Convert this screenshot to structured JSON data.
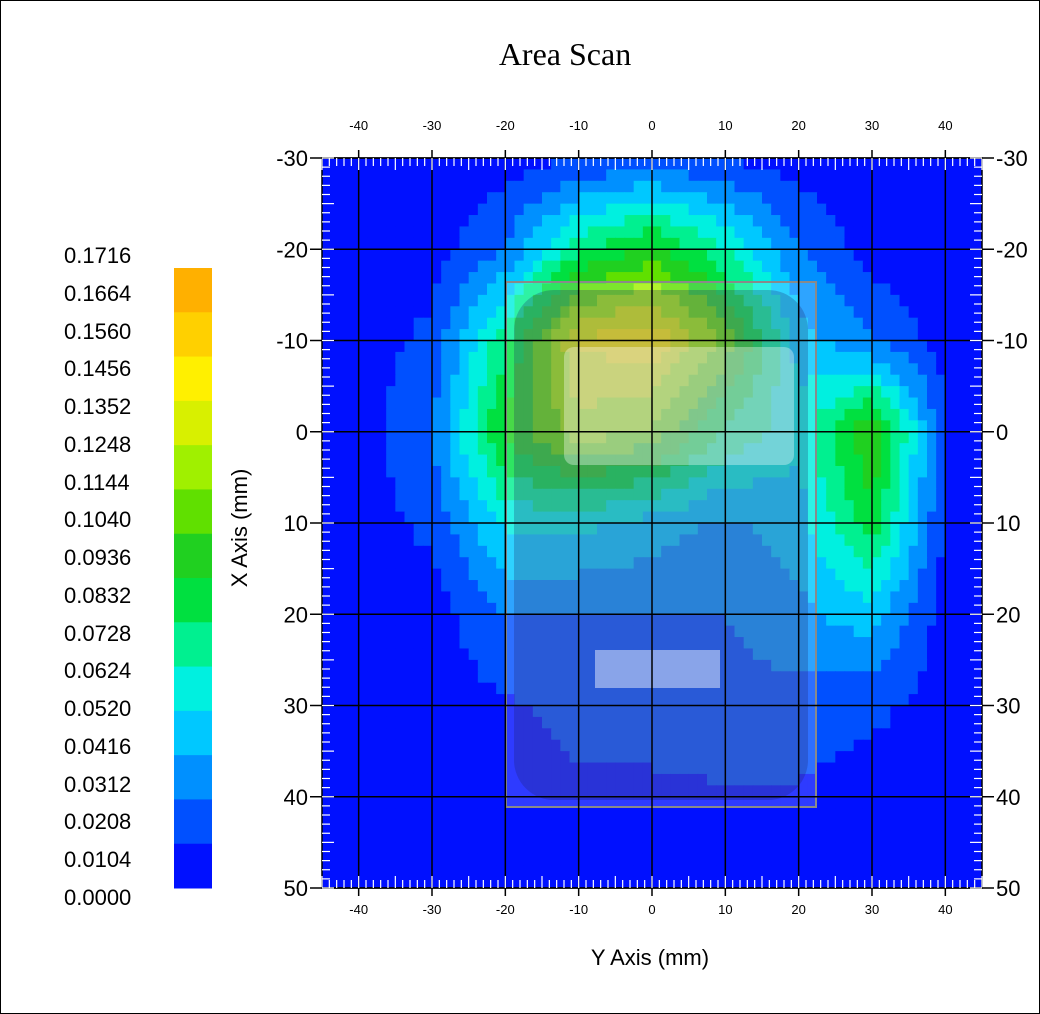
{
  "chart_data": {
    "type": "heatmap",
    "title": "Area Scan",
    "xlabel": "Y Axis (mm)",
    "ylabel": "X Axis (mm)",
    "xlim": [
      -45,
      45
    ],
    "ylim": [
      -30,
      50
    ],
    "x_ticks": [
      -40,
      -30,
      -20,
      -10,
      0,
      10,
      20,
      30,
      40
    ],
    "y_ticks": [
      -30,
      -20,
      -10,
      0,
      10,
      20,
      30,
      40,
      50
    ],
    "y_tick_labels": [
      "-30",
      "-20",
      "-10",
      "0",
      "10",
      "20",
      "30",
      "40",
      "50"
    ],
    "x_tick_labels": [
      "-40",
      "-30",
      "-20",
      "-10",
      "0",
      "10",
      "20",
      "30",
      "40"
    ],
    "grid": true,
    "colorbar": {
      "min": 0.0,
      "max": 0.1716,
      "labels": [
        "0.1716",
        "0.1664",
        "0.1560",
        "0.1456",
        "0.1352",
        "0.1248",
        "0.1144",
        "0.1040",
        "0.0936",
        "0.0832",
        "0.0728",
        "0.0624",
        "0.0520",
        "0.0416",
        "0.0312",
        "0.0208",
        "0.0104",
        "0.0000"
      ],
      "colors": [
        "#ffb000",
        "#ffd000",
        "#fff000",
        "#d8f000",
        "#a0f000",
        "#60e000",
        "#20d020",
        "#00e040",
        "#00f090",
        "#00f0e0",
        "#00c8ff",
        "#0090ff",
        "#0050ff",
        "#0010ff"
      ]
    },
    "grid_y": [
      -30,
      -20,
      -10,
      0,
      10,
      20,
      30,
      40,
      50
    ],
    "grid_x": [
      -40,
      -30,
      -20,
      -10,
      0,
      10,
      20,
      30,
      40
    ],
    "values": [
      [
        0.0,
        0.0,
        0.0,
        0.005,
        0.01,
        0.005,
        0.0,
        0.0,
        0.0
      ],
      [
        0.0,
        0.0,
        0.02,
        0.07,
        0.09,
        0.06,
        0.02,
        0.0,
        0.0
      ],
      [
        0.0,
        0.01,
        0.07,
        0.14,
        0.15,
        0.11,
        0.04,
        0.02,
        0.0
      ],
      [
        0.0,
        0.02,
        0.09,
        0.12,
        0.11,
        0.07,
        0.05,
        0.1,
        0.01
      ],
      [
        0.0,
        0.01,
        0.05,
        0.05,
        0.04,
        0.03,
        0.04,
        0.08,
        0.005
      ],
      [
        0.0,
        0.0,
        0.02,
        0.02,
        0.02,
        0.02,
        0.03,
        0.04,
        0.0
      ],
      [
        0.0,
        0.0,
        0.005,
        0.01,
        0.01,
        0.015,
        0.015,
        0.01,
        0.0
      ],
      [
        0.0,
        0.0,
        0.0,
        0.005,
        0.005,
        0.005,
        0.005,
        0.0,
        0.0
      ],
      [
        0.0,
        0.0,
        0.0,
        0.0,
        0.0,
        0.0,
        0.0,
        0.0,
        0.0
      ]
    ]
  }
}
